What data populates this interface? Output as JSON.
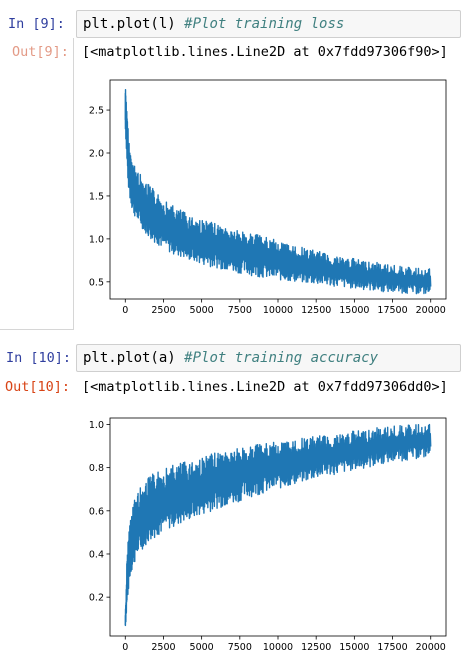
{
  "cells": [
    {
      "in_prompt": "In [9]:",
      "code": "plt.plot(l)",
      "comment": "#Plot training loss",
      "out_prompt": "Out[9]:",
      "output": "[<matplotlib.lines.Line2D at 0x7fdd97306f90>]"
    },
    {
      "in_prompt": "In [10]:",
      "code": "plt.plot(a)",
      "comment": "#Plot training accuracy",
      "out_prompt": "Out[10]:",
      "output": "[<matplotlib.lines.Line2D at 0x7fdd97306dd0>]"
    }
  ],
  "chart_data": [
    {
      "type": "line",
      "title": "",
      "xlabel": "",
      "ylabel": "",
      "color": "#1f77b4",
      "grid": false,
      "xlim": [
        -1000,
        21000
      ],
      "ylim": [
        0.3,
        2.85
      ],
      "x_ticks": [
        0,
        2500,
        5000,
        7500,
        10000,
        12500,
        15000,
        17500,
        20000
      ],
      "x_tick_labels": [
        "0",
        "2500",
        "5000",
        "7500",
        "10000",
        "12500",
        "15000",
        "17500",
        "20000"
      ],
      "y_ticks": [
        0.5,
        1.0,
        1.5,
        2.0,
        2.5
      ],
      "y_tick_labels": [
        "0.5",
        "1.0",
        "1.5",
        "2.0",
        "2.5"
      ],
      "series": [
        {
          "x": [
            0,
            50,
            100,
            200,
            300,
            500,
            800,
            1200,
            1600,
            2000,
            2500,
            3000,
            4000,
            5000,
            6000,
            7000,
            8000,
            9000,
            10000,
            11000,
            12000,
            13000,
            14000,
            15000,
            16000,
            17000,
            18000,
            19000,
            20000
          ],
          "low": [
            2.3,
            2.1,
            1.85,
            1.6,
            1.45,
            1.3,
            1.2,
            1.1,
            1.0,
            0.95,
            0.88,
            0.83,
            0.76,
            0.7,
            0.66,
            0.62,
            0.58,
            0.55,
            0.52,
            0.5,
            0.48,
            0.46,
            0.44,
            0.42,
            0.4,
            0.38,
            0.37,
            0.36,
            0.35
          ],
          "high": [
            2.8,
            2.75,
            2.5,
            2.25,
            2.05,
            1.9,
            1.8,
            1.7,
            1.62,
            1.55,
            1.47,
            1.4,
            1.3,
            1.23,
            1.17,
            1.12,
            1.08,
            1.03,
            0.98,
            0.93,
            0.88,
            0.84,
            0.8,
            0.77,
            0.74,
            0.71,
            0.68,
            0.66,
            0.65
          ]
        }
      ]
    },
    {
      "type": "line",
      "title": "",
      "xlabel": "",
      "ylabel": "",
      "color": "#1f77b4",
      "grid": false,
      "xlim": [
        -1000,
        21000
      ],
      "ylim": [
        0.02,
        1.03
      ],
      "x_ticks": [
        0,
        2500,
        5000,
        7500,
        10000,
        12500,
        15000,
        17500,
        20000
      ],
      "x_tick_labels": [
        "0",
        "2500",
        "5000",
        "7500",
        "10000",
        "12500",
        "15000",
        "17500",
        "20000"
      ],
      "y_ticks": [
        0.2,
        0.4,
        0.6,
        0.8,
        1.0
      ],
      "y_tick_labels": [
        "0.2",
        "0.4",
        "0.6",
        "0.8",
        "1.0"
      ],
      "series": [
        {
          "x": [
            0,
            50,
            100,
            200,
            300,
            500,
            800,
            1200,
            1600,
            2000,
            2500,
            3000,
            4000,
            5000,
            6000,
            7000,
            8000,
            9000,
            10000,
            11000,
            12000,
            13000,
            14000,
            15000,
            16000,
            17000,
            18000,
            19000,
            20000
          ],
          "low": [
            0.06,
            0.09,
            0.14,
            0.22,
            0.28,
            0.34,
            0.39,
            0.43,
            0.46,
            0.48,
            0.5,
            0.52,
            0.55,
            0.58,
            0.61,
            0.63,
            0.66,
            0.68,
            0.7,
            0.72,
            0.74,
            0.76,
            0.77,
            0.79,
            0.8,
            0.82,
            0.83,
            0.84,
            0.85
          ],
          "high": [
            0.12,
            0.22,
            0.36,
            0.48,
            0.56,
            0.64,
            0.69,
            0.73,
            0.76,
            0.78,
            0.8,
            0.81,
            0.83,
            0.85,
            0.87,
            0.89,
            0.9,
            0.91,
            0.92,
            0.93,
            0.94,
            0.95,
            0.96,
            0.97,
            0.98,
            0.99,
            0.995,
            1.0,
            1.0
          ]
        }
      ]
    }
  ]
}
